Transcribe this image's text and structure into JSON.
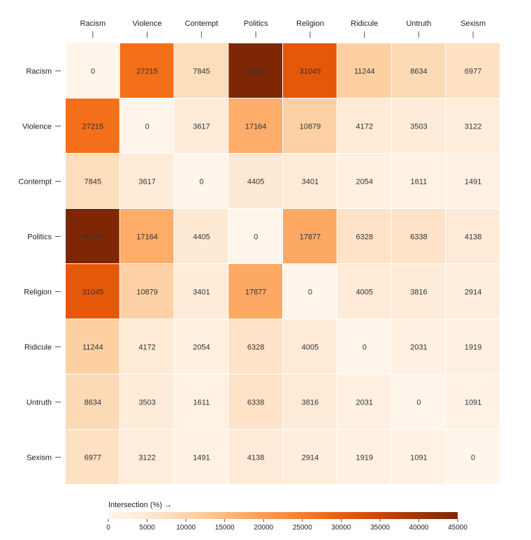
{
  "chart_data": {
    "type": "heatmap",
    "x_categories": [
      "Racism",
      "Violence",
      "Contempt",
      "Politics",
      "Religion",
      "Ridicule",
      "Untruth",
      "Sexism"
    ],
    "y_categories": [
      "Racism",
      "Violence",
      "Contempt",
      "Politics",
      "Religion",
      "Ridicule",
      "Untruth",
      "Sexism"
    ],
    "values": [
      [
        0,
        27215,
        7845,
        45145,
        31045,
        11244,
        8634,
        6977
      ],
      [
        27215,
        0,
        3617,
        17164,
        10879,
        4172,
        3503,
        3122
      ],
      [
        7845,
        3617,
        0,
        4405,
        3401,
        2054,
        1611,
        1491
      ],
      [
        45145,
        17164,
        4405,
        0,
        17877,
        6328,
        6338,
        4138
      ],
      [
        31045,
        10879,
        3401,
        17877,
        0,
        4005,
        3816,
        2914
      ],
      [
        11244,
        4172,
        2054,
        6328,
        4005,
        0,
        2031,
        1919
      ],
      [
        8634,
        3503,
        1611,
        6338,
        3816,
        2031,
        0,
        1091
      ],
      [
        6977,
        3122,
        1491,
        4138,
        2914,
        1919,
        1091,
        0
      ]
    ],
    "x_axis_position": "top",
    "legend": {
      "title": "Intersection (%) →",
      "domain": [
        0,
        45000
      ],
      "ticks": [
        0,
        5000,
        10000,
        15000,
        20000,
        25000,
        30000,
        35000,
        40000,
        45000
      ],
      "placement": "bottom"
    },
    "color_scheme": {
      "name": "Oranges",
      "stops": [
        "#fff5eb",
        "#fee6ce",
        "#fdd0a2",
        "#fdae6b",
        "#fd8d3c",
        "#f16913",
        "#d94801",
        "#a63603",
        "#7f2704"
      ]
    }
  }
}
